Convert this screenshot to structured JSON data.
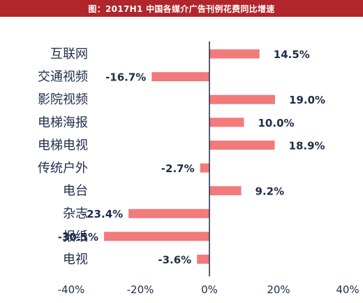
{
  "title": "图：2017H1 中国各媒介广告刊例花费同比增速",
  "chart_data": {
    "type": "bar",
    "orientation": "horizontal",
    "title": "图：2017H1 中国各媒介广告刊例花费同比增速",
    "xlabel": "",
    "ylabel": "",
    "categories": [
      "互联网",
      "交通视频",
      "影院视频",
      "电梯海报",
      "电梯电视",
      "传统户外",
      "电台",
      "杂志",
      "报纸",
      "电视"
    ],
    "values": [
      14.5,
      -16.7,
      19.0,
      10.0,
      18.9,
      -2.7,
      9.2,
      -23.4,
      -30.5,
      -3.6
    ],
    "value_labels": [
      "14.5%",
      "-16.7%",
      "19.0%",
      "10.0%",
      "18.9%",
      "-2.7%",
      "9.2%",
      "-23.4%",
      "-30.5%",
      "-3.6%"
    ],
    "xlim": [
      -40,
      40
    ],
    "xticks": [
      -40,
      -20,
      0,
      20,
      40
    ],
    "xtick_labels": [
      "-40%",
      "-20%",
      "0%",
      "20%",
      "40%"
    ],
    "grid": false,
    "legend": "none",
    "colors": {
      "bar": "#f27a7a",
      "axis": "#1f2d4a",
      "text": "#1f2d4a",
      "title_bg": "#b0262c",
      "title_text": "#ffffff"
    }
  }
}
